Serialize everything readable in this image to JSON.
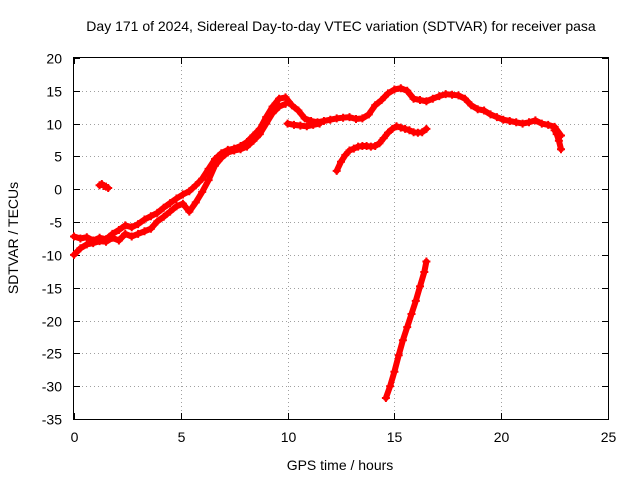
{
  "chart_data": {
    "type": "scatter",
    "title": "Day 171 of 2024, Sidereal Day-to-day VTEC variation (SDTVAR) for receiver pasa",
    "xlabel": "GPS time / hours",
    "ylabel": "SDTVAR / TECUs",
    "xlim": [
      0,
      25
    ],
    "ylim": [
      -35,
      20
    ],
    "x_ticks": [
      0,
      5,
      10,
      15,
      20,
      25
    ],
    "y_ticks": [
      -35,
      -30,
      -25,
      -20,
      -15,
      -10,
      -5,
      0,
      5,
      10,
      15,
      20
    ],
    "grid": true,
    "marker": "+",
    "series_color": "#ff0000",
    "series": [
      {
        "name": "main-trace-upper",
        "x": [
          0,
          0.3,
          0.6,
          0.9,
          1.2,
          1.5,
          1.8,
          2.1,
          2.4,
          2.7,
          3.0,
          3.3,
          3.6,
          3.9,
          4.2,
          4.5,
          4.8,
          5.1,
          5.4,
          5.7,
          6.0,
          6.3,
          6.6,
          6.9,
          7.2,
          7.5,
          7.8,
          8.1,
          8.4,
          8.7,
          9.0,
          9.3,
          9.6,
          9.9,
          10.2,
          10.5,
          10.8,
          11.1,
          11.4,
          11.7,
          12.0,
          12.3,
          12.6,
          12.9,
          13.2,
          13.5,
          13.8,
          14.1,
          14.4,
          14.7,
          15.0,
          15.3,
          15.6,
          15.9,
          16.2,
          16.5,
          16.8,
          17.1,
          17.4,
          17.7,
          18.0,
          18.3,
          18.6,
          18.9,
          19.2,
          19.5,
          19.8,
          20.1,
          20.4,
          20.7,
          21.0,
          21.3,
          21.6,
          21.9,
          22.2,
          22.5,
          22.8
        ],
        "y": [
          -7.2,
          -7.5,
          -7.3,
          -7.8,
          -7.4,
          -7.6,
          -6.8,
          -6.2,
          -5.5,
          -5.8,
          -5.3,
          -4.6,
          -4.1,
          -3.6,
          -2.8,
          -2.1,
          -1.4,
          -0.8,
          -0.3,
          0.6,
          1.6,
          3.1,
          4.6,
          5.5,
          6.0,
          6.2,
          6.6,
          7.2,
          8.2,
          9.2,
          11.0,
          12.6,
          13.8,
          14.0,
          12.8,
          12.0,
          10.8,
          10.4,
          10.2,
          10.4,
          10.6,
          10.8,
          10.9,
          11.0,
          10.7,
          10.8,
          11.4,
          12.8,
          13.6,
          14.6,
          15.2,
          15.4,
          15.0,
          13.8,
          13.6,
          13.4,
          13.8,
          14.2,
          14.5,
          14.4,
          14.3,
          13.8,
          12.8,
          12.2,
          12.0,
          11.4,
          11.0,
          10.6,
          10.4,
          10.2,
          10.0,
          10.2,
          10.5,
          10.0,
          9.8,
          9.5,
          8.2
        ]
      },
      {
        "name": "main-trace-lower",
        "x": [
          0,
          0.3,
          0.6,
          0.9,
          1.2,
          1.5,
          1.8,
          2.1,
          2.4,
          2.7,
          3.0,
          3.3,
          3.6,
          3.9,
          4.2,
          4.5,
          4.8,
          5.1,
          5.4,
          5.7,
          6.0,
          6.3,
          6.6,
          6.9,
          7.2,
          7.5,
          7.8,
          8.1,
          8.4,
          8.7,
          9.0,
          9.3,
          9.6,
          9.9
        ],
        "y": [
          -10.0,
          -9.0,
          -8.4,
          -8.2,
          -7.9,
          -8.0,
          -7.4,
          -7.8,
          -6.8,
          -7.2,
          -6.8,
          -6.4,
          -6.0,
          -4.9,
          -4.2,
          -3.4,
          -2.6,
          -2.2,
          -3.4,
          -2.0,
          -0.4,
          1.4,
          3.6,
          4.8,
          5.6,
          5.9,
          6.1,
          6.5,
          7.4,
          8.4,
          10.0,
          11.6,
          12.6,
          13.0
        ]
      },
      {
        "name": "early-arc",
        "x": [
          1.2,
          1.3,
          1.4,
          1.5,
          1.6
        ],
        "y": [
          0.6,
          0.8,
          0.5,
          0.4,
          0.2
        ]
      },
      {
        "name": "arc-10h",
        "x": [
          10.0,
          10.3,
          10.6,
          10.9,
          11.2,
          11.5
        ],
        "y": [
          10.0,
          9.8,
          9.7,
          9.6,
          9.8,
          10.0
        ]
      },
      {
        "name": "arc-12h",
        "x": [
          12.3,
          12.5,
          12.7,
          12.9,
          13.1,
          13.3,
          13.5,
          13.7,
          13.9,
          14.1,
          14.3,
          14.5,
          14.7,
          14.9,
          15.1,
          15.3,
          15.5,
          15.7,
          15.9,
          16.1,
          16.3,
          16.5
        ],
        "y": [
          2.8,
          4.2,
          5.2,
          5.9,
          6.2,
          6.5,
          6.6,
          6.6,
          6.5,
          6.6,
          7.0,
          7.8,
          8.6,
          9.2,
          9.6,
          9.4,
          9.2,
          9.0,
          8.7,
          8.6,
          8.7,
          9.2
        ]
      },
      {
        "name": "steep-arc",
        "x": [
          14.6,
          14.8,
          15.0,
          15.2,
          15.4,
          15.6,
          15.8,
          16.0,
          16.2,
          16.4,
          16.5
        ],
        "y": [
          -31.8,
          -30.0,
          -27.8,
          -25.3,
          -23.0,
          -21.0,
          -19.0,
          -17.0,
          -14.8,
          -12.6,
          -11.0
        ]
      },
      {
        "name": "tail-arc",
        "x": [
          22.5,
          22.6,
          22.7,
          22.8
        ],
        "y": [
          9.0,
          8.4,
          7.4,
          6.1
        ]
      }
    ]
  }
}
